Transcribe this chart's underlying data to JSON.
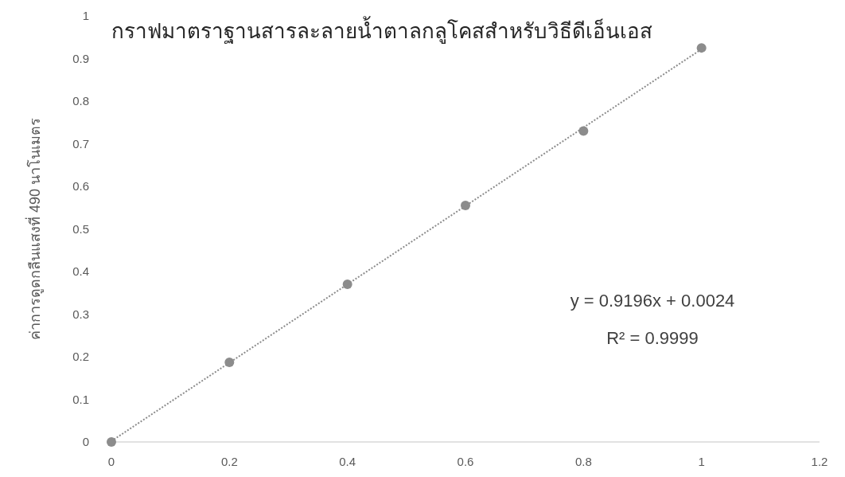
{
  "chart_data": {
    "type": "scatter",
    "title": "กราฟมาตราฐานสารละลายน้ำตาลกลูโคสสำหรับวิธีดีเอ็นเอส",
    "ylabel": "ค่าการดูดกลืนแสงที่ 490 นาโนเมตร",
    "xlim": [
      0,
      1.2
    ],
    "xticks": [
      0,
      0.2,
      0.4,
      0.6,
      0.8,
      1,
      1.2
    ],
    "ylim": [
      0,
      1
    ],
    "yticks": [
      0,
      0.1,
      0.2,
      0.3,
      0.4,
      0.5,
      0.6,
      0.7,
      0.8,
      0.9,
      1
    ],
    "grid": false,
    "series": [
      {
        "marker": "circle",
        "color": "#8c8c8c",
        "x": [
          0,
          0.2,
          0.4,
          0.6,
          0.8,
          1
        ],
        "values": [
          0,
          0.187,
          0.37,
          0.555,
          0.73,
          0.925
        ]
      },
      {
        "type": "line",
        "color": "#8c8c8c",
        "line_style": "dotted",
        "marker": "none",
        "x": [
          0,
          1
        ],
        "values": [
          0.002,
          0.922
        ]
      }
    ],
    "annotations": [
      "y = 0.9196x + 0.0024",
      "R² = 0.9999"
    ]
  }
}
